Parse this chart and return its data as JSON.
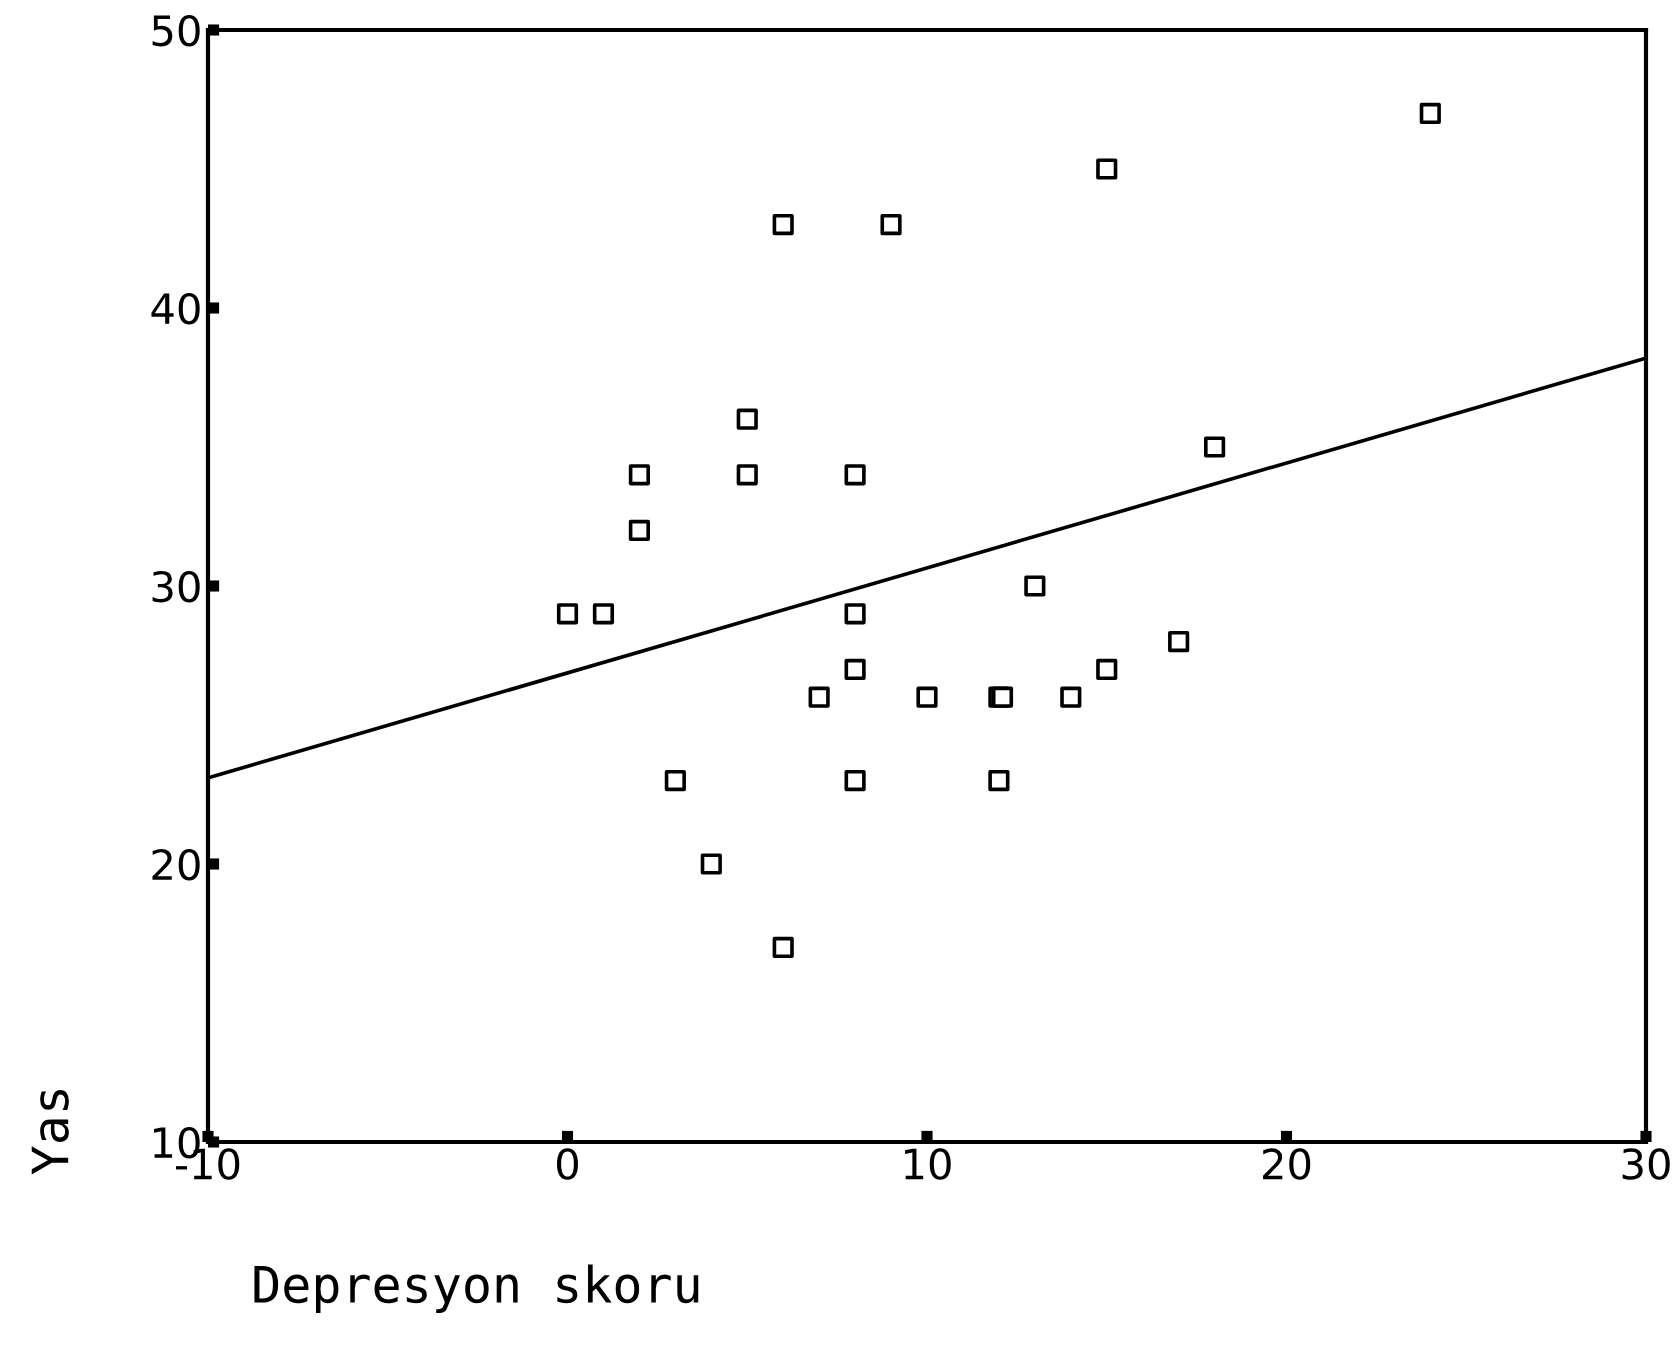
{
  "chart_data": {
    "type": "scatter",
    "xlabel": "Depresyon skoru",
    "ylabel": "Yas",
    "xlim": [
      -10,
      30
    ],
    "ylim": [
      10,
      50
    ],
    "xticks": [
      -10,
      0,
      10,
      20,
      30
    ],
    "yticks": [
      10,
      20,
      30,
      40,
      50
    ],
    "grid": false,
    "legend": false,
    "series": [
      {
        "marker": "square",
        "color": "#000000",
        "x": [
          0,
          1,
          2,
          2,
          3,
          4,
          5,
          5,
          6,
          6,
          7,
          8,
          8,
          8,
          8,
          9,
          10,
          12,
          12.1,
          12,
          13,
          14,
          15,
          15,
          17,
          18,
          24
        ],
        "values": [
          29,
          29,
          34,
          32,
          23,
          20,
          36,
          34,
          43,
          17,
          26,
          34,
          29,
          27,
          23,
          43,
          26,
          26,
          26,
          23,
          30,
          26,
          45,
          27,
          28,
          35,
          47
        ]
      },
      {
        "type": "line",
        "marker": "none",
        "color": "#000000",
        "x": [
          -10,
          30
        ],
        "values": [
          23.1,
          38.2
        ]
      }
    ]
  }
}
